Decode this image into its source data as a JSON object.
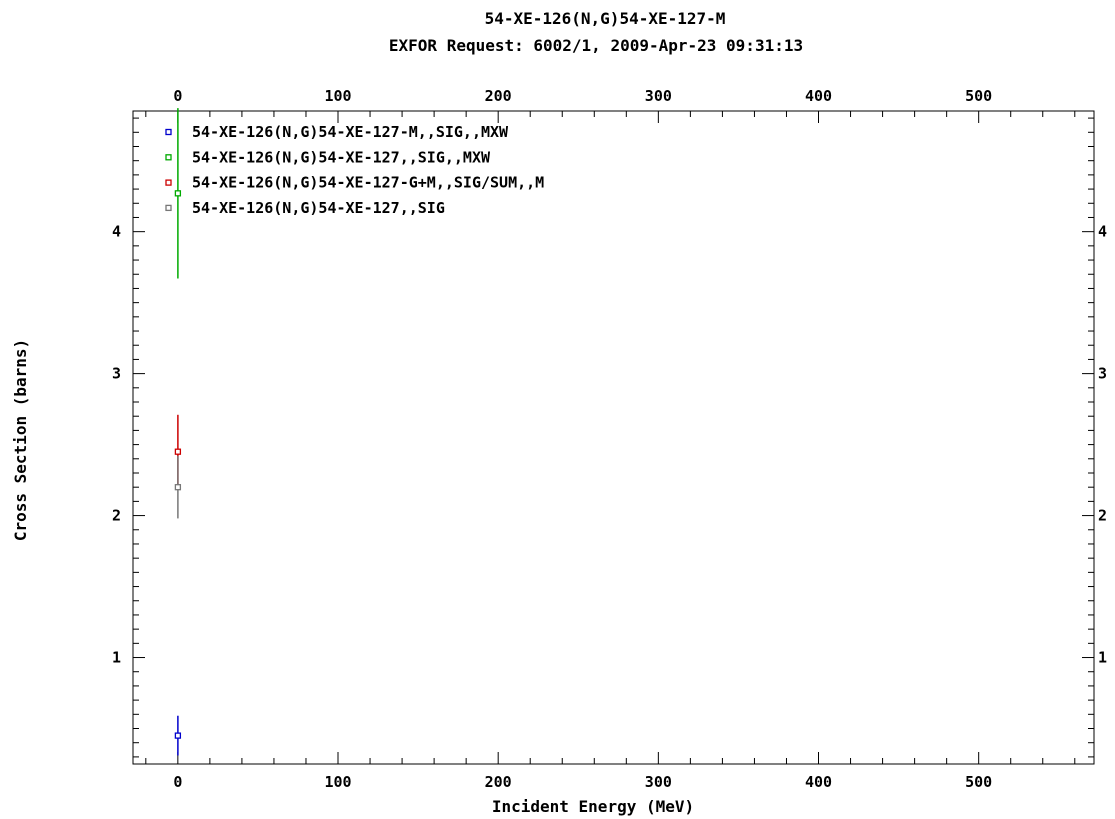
{
  "chart_data": {
    "type": "scatter",
    "title": "54-XE-126(N,G)54-XE-127-M",
    "subtitle": "EXFOR Request: 6002/1, 2009-Apr-23 09:31:13",
    "xlabel": "Incident Energy (MeV)",
    "ylabel": "Cross Section (barns)",
    "xlim": [
      -28,
      572
    ],
    "ylim": [
      0.25,
      4.85
    ],
    "x_ticks_major": [
      0,
      100,
      200,
      300,
      400,
      500
    ],
    "x_tick_labels": [
      "0",
      "100",
      "200",
      "300",
      "400",
      "500"
    ],
    "y_ticks_major": [
      1,
      2,
      3,
      4
    ],
    "y_tick_labels": [
      "1",
      "2",
      "3",
      "4"
    ],
    "grid": false,
    "legend_position": "top-left",
    "series": [
      {
        "name": "54-XE-126(N,G)54-XE-127-M,,SIG,,MXW",
        "color": "#0000cc",
        "x": [
          0.0253
        ],
        "y": [
          0.45
        ],
        "yerr": [
          0.14
        ]
      },
      {
        "name": "54-XE-126(N,G)54-XE-127,,SIG,,MXW",
        "color": "#00aa00",
        "x": [
          0.0253
        ],
        "y": [
          4.27
        ],
        "yerr": [
          0.6
        ]
      },
      {
        "name": "54-XE-126(N,G)54-XE-127-G+M,,SIG/SUM,,M",
        "color": "#cc0000",
        "x": [
          0.0253
        ],
        "y": [
          2.45
        ],
        "yerr": [
          0.26
        ]
      },
      {
        "name": "54-XE-126(N,G)54-XE-127,,SIG",
        "color": "#777777",
        "x": [
          0.0253
        ],
        "y": [
          2.2
        ],
        "yerr": [
          0.22
        ]
      }
    ]
  }
}
